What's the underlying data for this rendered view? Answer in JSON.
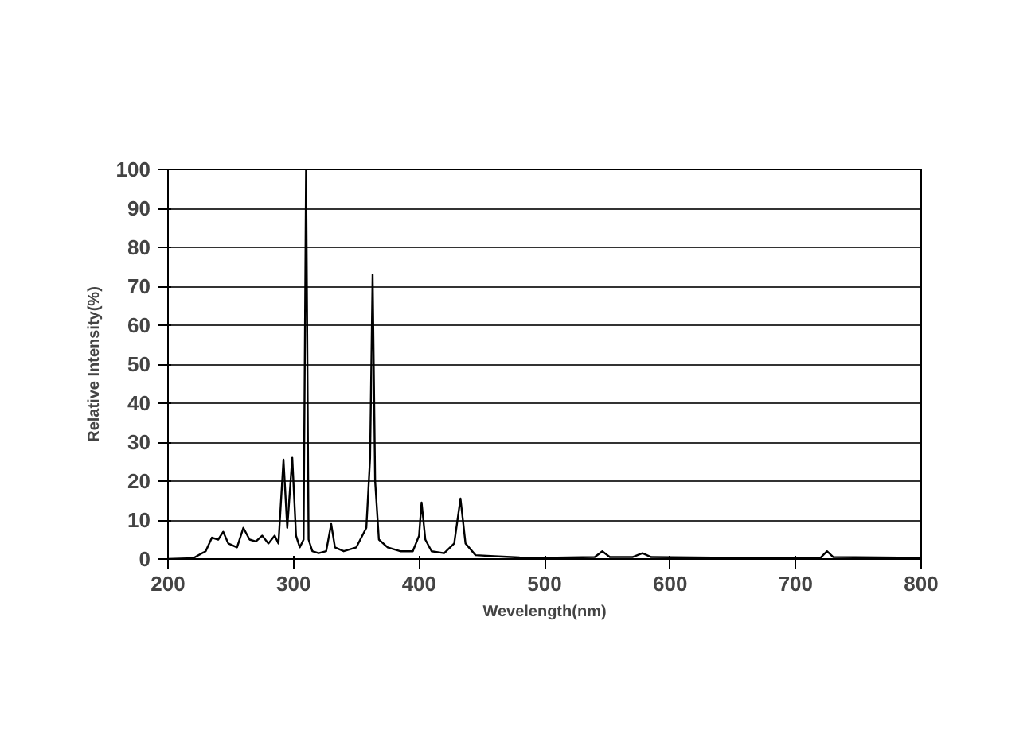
{
  "chart_data": {
    "type": "line",
    "xlabel": "Wevelength(nm)",
    "ylabel": "Relative Intensity(%)",
    "xlim": [
      200,
      800
    ],
    "ylim": [
      0,
      100
    ],
    "xticks": [
      200,
      300,
      400,
      500,
      600,
      700,
      800
    ],
    "yticks": [
      0,
      10,
      20,
      30,
      40,
      50,
      60,
      70,
      80,
      90,
      100
    ],
    "grid": "y",
    "marker": "none",
    "line_style": "solid",
    "series": [
      {
        "color": "#000000",
        "x": [
          200,
          220,
          230,
          235,
          240,
          244,
          248,
          255,
          260,
          265,
          270,
          275,
          280,
          285,
          288,
          292,
          295,
          299,
          302,
          305,
          308,
          310,
          312,
          315,
          320,
          326,
          330,
          333,
          340,
          350,
          358,
          361,
          363,
          365,
          368,
          375,
          385,
          395,
          400,
          402,
          405,
          410,
          420,
          428,
          433,
          437,
          445,
          460,
          480,
          500,
          540,
          546,
          552,
          570,
          578,
          585,
          650,
          720,
          725,
          730,
          800
        ],
        "values": [
          0,
          0.2,
          2,
          5.5,
          5,
          7,
          4,
          3,
          8,
          5,
          4.5,
          6,
          4,
          6,
          4,
          25.5,
          8,
          26,
          6,
          3,
          5,
          100,
          5,
          2,
          1.5,
          2,
          9,
          3,
          2,
          3,
          8,
          26,
          73,
          20,
          5,
          3,
          2,
          2,
          6,
          14.5,
          5,
          2,
          1.5,
          4,
          15.5,
          4,
          1,
          0.7,
          0.4,
          0.3,
          0.5,
          2,
          0.5,
          0.5,
          1.5,
          0.5,
          0.3,
          0.4,
          2,
          0.5,
          0.3
        ]
      }
    ]
  }
}
